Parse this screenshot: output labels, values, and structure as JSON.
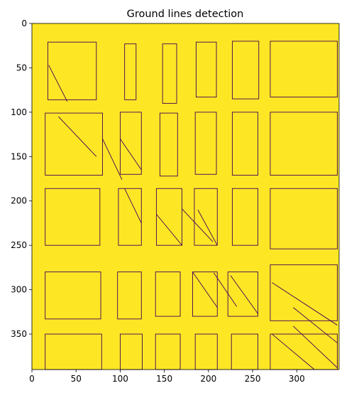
{
  "chart_data": {
    "type": "heatmap",
    "title": "Ground lines detection",
    "xlabel": "",
    "ylabel": "",
    "xlim": [
      0,
      348
    ],
    "ylim": [
      390,
      0
    ],
    "image_size": [
      348,
      390
    ],
    "x_ticks": [
      0,
      50,
      100,
      150,
      200,
      250,
      300
    ],
    "y_ticks": [
      0,
      50,
      100,
      150,
      200,
      250,
      300,
      350
    ],
    "colors": {
      "background": "#fde725",
      "line": "#440154"
    },
    "boxes": [
      {
        "x0": 18,
        "y0": 21,
        "x1": 73,
        "y1": 86,
        "diag": [
          [
            19,
            47
          ],
          [
            40,
            88
          ]
        ]
      },
      {
        "x0": 105,
        "y0": 23,
        "x1": 118,
        "y1": 86
      },
      {
        "x0": 148,
        "y0": 23,
        "x1": 164,
        "y1": 90
      },
      {
        "x0": 186,
        "y0": 21,
        "x1": 209,
        "y1": 83
      },
      {
        "x0": 227,
        "y0": 20,
        "x1": 257,
        "y1": 85
      },
      {
        "x0": 270,
        "y0": 20,
        "x1": 346,
        "y1": 83
      },
      {
        "x0": 15,
        "y0": 101,
        "x1": 80,
        "y1": 171,
        "diag": [
          [
            30,
            105
          ],
          [
            73,
            150
          ]
        ]
      },
      {
        "x0": 100,
        "y0": 100,
        "x1": 124,
        "y1": 170,
        "diag": [
          [
            100,
            130
          ],
          [
            124,
            165
          ]
        ]
      },
      {
        "x0": 145,
        "y0": 101,
        "x1": 165,
        "y1": 172
      },
      {
        "x0": 185,
        "y0": 100,
        "x1": 209,
        "y1": 170
      },
      {
        "x0": 227,
        "y0": 100,
        "x1": 256,
        "y1": 171
      },
      {
        "x0": 270,
        "y0": 100,
        "x1": 346,
        "y1": 171
      },
      {
        "x0": 15,
        "y0": 186,
        "x1": 77,
        "y1": 250
      },
      {
        "x0": 98,
        "y0": 186,
        "x1": 124,
        "y1": 250,
        "diag": [
          [
            105,
            186
          ],
          [
            124,
            225
          ]
        ]
      },
      {
        "x0": 141,
        "y0": 186,
        "x1": 170,
        "y1": 250,
        "diag": [
          [
            141,
            215
          ],
          [
            170,
            250
          ]
        ]
      },
      {
        "x0": 184,
        "y0": 186,
        "x1": 210,
        "y1": 250,
        "diag": [
          [
            188,
            210
          ],
          [
            210,
            250
          ]
        ]
      },
      {
        "x0": 227,
        "y0": 186,
        "x1": 256,
        "y1": 250
      },
      {
        "x0": 270,
        "y0": 186,
        "x1": 346,
        "y1": 254
      },
      {
        "x0": 15,
        "y0": 280,
        "x1": 78,
        "y1": 333
      },
      {
        "x0": 97,
        "y0": 280,
        "x1": 124,
        "y1": 333
      },
      {
        "x0": 140,
        "y0": 280,
        "x1": 168,
        "y1": 330
      },
      {
        "x0": 182,
        "y0": 280,
        "x1": 210,
        "y1": 330,
        "diag": [
          [
            182,
            280
          ],
          [
            210,
            320
          ]
        ]
      },
      {
        "x0": 222,
        "y0": 280,
        "x1": 256,
        "y1": 330,
        "diag": [
          [
            225,
            284
          ],
          [
            256,
            327
          ]
        ]
      },
      {
        "x0": 270,
        "y0": 272,
        "x1": 346,
        "y1": 335,
        "diag": [
          [
            272,
            292
          ],
          [
            346,
            340
          ]
        ]
      },
      {
        "x0": 15,
        "y0": 350,
        "x1": 79,
        "y1": 390
      },
      {
        "x0": 100,
        "y0": 350,
        "x1": 125,
        "y1": 390
      },
      {
        "x0": 140,
        "y0": 350,
        "x1": 168,
        "y1": 390
      },
      {
        "x0": 185,
        "y0": 350,
        "x1": 210,
        "y1": 390
      },
      {
        "x0": 226,
        "y0": 350,
        "x1": 256,
        "y1": 390
      },
      {
        "x0": 270,
        "y0": 350,
        "x1": 346,
        "y1": 390,
        "diag": [
          [
            272,
            350
          ],
          [
            320,
            390
          ]
        ]
      }
    ],
    "diagonal_lines": [
      [
        [
          80,
          130
        ],
        [
          102,
          176
        ]
      ],
      [
        [
          170,
          209
        ],
        [
          205,
          246
        ]
      ],
      [
        [
          206,
          281
        ],
        [
          232,
          319
        ]
      ],
      [
        [
          296,
          320
        ],
        [
          346,
          360
        ]
      ],
      [
        [
          296,
          341
        ],
        [
          346,
          388
        ]
      ]
    ]
  }
}
